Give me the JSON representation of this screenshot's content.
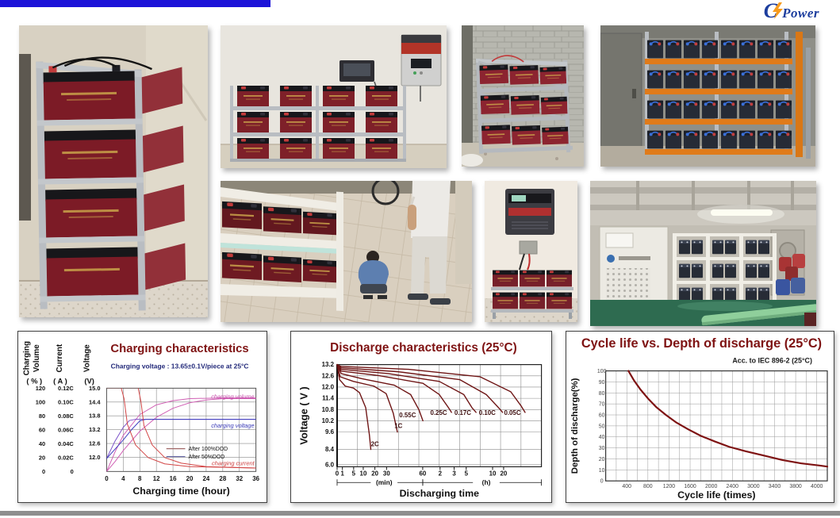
{
  "page": {
    "top_bar_color": "#1c13d8",
    "bottom_bar_color": "#8e8e8e",
    "background": "#ffffff"
  },
  "logo": {
    "c": "C",
    "power": "Power",
    "blue": "#1d3e9e",
    "orange": "#f79b1d",
    "bolt_icon": "lightning-bolt"
  },
  "photos": [
    {
      "id": "battery-tower-installation",
      "desc": "tall steel rack tower of red CSPower batteries against a wall"
    },
    {
      "id": "inverter-and-battery-shelf",
      "desc": "wall-mounted inverter above a 3-tier shelf of red batteries"
    },
    {
      "id": "battery-rack-concrete-room",
      "desc": "3-row battery rack in a concrete block room"
    },
    {
      "id": "orange-rack-battery-bank",
      "desc": "orange pallet racking filled with black batteries, blue and red terminals"
    },
    {
      "id": "battery-shelf-installation-team",
      "desc": "two installers beside white shelving loaded with batteries"
    },
    {
      "id": "wall-inverter-small-battery-rack",
      "desc": "wall inverter wired to a small two-tier battery rack"
    },
    {
      "id": "ups-battery-room",
      "desc": "UPS cabinet and white battery racks in an industrial room with green floor"
    }
  ],
  "chart_data": [
    {
      "kind": "charging",
      "type": "line",
      "title": "Charging characteristics",
      "subtitle": "Charging voltage :   13.65±0.1V/piece at 25°C",
      "xlabel": "Charging time (hour)",
      "x_ticks": [
        "0",
        "4",
        "8",
        "12",
        "16",
        "20",
        "24",
        "28",
        "32",
        "36"
      ],
      "x_range": [
        0,
        36
      ],
      "y_axes": [
        {
          "words": [
            "Charging",
            "Volume"
          ],
          "unit": "( % )",
          "ticks": [
            "120",
            "100",
            "80",
            "60",
            "40",
            "20",
            "0"
          ],
          "range": [
            0,
            120
          ]
        },
        {
          "words": [
            "Current"
          ],
          "unit": "( A )",
          "ticks": [
            "0.12C",
            "0.10C",
            "0.08C",
            "0.06C",
            "0.04C",
            "0.02C",
            "0"
          ],
          "range": [
            0,
            0.12
          ]
        },
        {
          "words": [
            "Voltage"
          ],
          "unit": "(V)",
          "ticks": [
            "15.0",
            "14.4",
            "13.8",
            "13.2",
            "12.6",
            "12.0"
          ],
          "range": [
            12.0,
            15.0
          ]
        }
      ],
      "legend": [
        {
          "label": "After 100%DOD",
          "color": "#a06868"
        },
        {
          "label": "After 50%DOD",
          "color": "#6868a8"
        }
      ],
      "curve_labels": [
        {
          "text": "charging volume",
          "color": "#c448a8",
          "y_axis": "volume",
          "y": 108
        },
        {
          "text": "charging voltage",
          "color": "#3a3ab8",
          "y_axis": "voltage",
          "y": 13.38
        },
        {
          "text": "charging current",
          "color": "#cc3c3c",
          "y_axis": "current",
          "y": 0.012
        }
      ],
      "series": [
        {
          "name": "charging volume after 50%DOD",
          "axis": "volume",
          "color": "#d060b4",
          "points": [
            [
              0,
              0
            ],
            [
              2,
              28
            ],
            [
              4,
              52
            ],
            [
              8,
              82
            ],
            [
              12,
              96
            ],
            [
              16,
              102
            ],
            [
              20,
              105
            ],
            [
              28,
              106
            ],
            [
              36,
              106
            ]
          ]
        },
        {
          "name": "charging volume after 100%DOD",
          "axis": "volume",
          "color": "#d060b4",
          "points": [
            [
              0,
              0
            ],
            [
              2,
              14
            ],
            [
              4,
              30
            ],
            [
              8,
              58
            ],
            [
              12,
              78
            ],
            [
              16,
              91
            ],
            [
              20,
              99
            ],
            [
              24,
              103
            ],
            [
              28,
              105
            ],
            [
              36,
              105
            ]
          ]
        },
        {
          "name": "charging voltage after 50%DOD",
          "axis": "voltage",
          "color": "#7a50c8",
          "points": [
            [
              0,
              11.95
            ],
            [
              2,
              12.7
            ],
            [
              4,
              13.3
            ],
            [
              5.5,
              13.6
            ],
            [
              7,
              13.65
            ],
            [
              36,
              13.65
            ]
          ]
        },
        {
          "name": "charging voltage after 100%DOD",
          "axis": "voltage",
          "color": "#4040c0",
          "points": [
            [
              0,
              11.95
            ],
            [
              2,
              12.35
            ],
            [
              4,
              12.75
            ],
            [
              6,
              13.2
            ],
            [
              8,
              13.58
            ],
            [
              9.5,
              13.65
            ],
            [
              36,
              13.65
            ]
          ]
        },
        {
          "name": "charging current after 50%DOD",
          "axis": "current",
          "color": "#d24444",
          "points": [
            [
              0,
              0.1205
            ],
            [
              3.5,
              0.1205
            ],
            [
              4.2,
              0.105
            ],
            [
              5,
              0.068
            ],
            [
              7,
              0.038
            ],
            [
              10,
              0.02
            ],
            [
              14,
              0.011
            ],
            [
              20,
              0.007
            ],
            [
              36,
              0.005
            ]
          ]
        },
        {
          "name": "charging current after 100%DOD",
          "axis": "current",
          "color": "#d24444",
          "points": [
            [
              0,
              0.1205
            ],
            [
              7.6,
              0.1205
            ],
            [
              8.3,
              0.1
            ],
            [
              9,
              0.066
            ],
            [
              11,
              0.038
            ],
            [
              14,
              0.02
            ],
            [
              18,
              0.012
            ],
            [
              24,
              0.007
            ],
            [
              36,
              0.005
            ]
          ]
        }
      ]
    },
    {
      "kind": "discharge",
      "type": "line",
      "title": "Discharge characteristics (25°C)",
      "ylabel": "Voltage ( V )",
      "xlabel": "Discharging time",
      "curve_color": "#6e1414",
      "y_ticks": [
        [
          "13.2",
          1.0
        ],
        [
          "12.6",
          0.89
        ],
        [
          "12.0",
          0.78
        ],
        [
          "11.4",
          0.67
        ],
        [
          "10.8",
          0.56
        ],
        [
          "10.2",
          0.45
        ],
        [
          "9.6",
          0.34
        ],
        [
          "8.4",
          0.17
        ],
        [
          "6.0",
          0.02
        ]
      ],
      "x_ticks": [
        [
          "0",
          0
        ],
        [
          "1",
          0.026
        ],
        [
          "5",
          0.081
        ],
        [
          "10",
          0.128
        ],
        [
          "20",
          0.185
        ],
        [
          "30",
          0.242
        ],
        [
          "60",
          0.419
        ],
        [
          "2",
          0.504
        ],
        [
          "3",
          0.573
        ],
        [
          "5",
          0.632
        ],
        [
          "10",
          0.761
        ],
        [
          "20",
          0.815
        ]
      ],
      "unit_groups": [
        {
          "label": "(min)",
          "center": 0.23,
          "span": [
            0,
            0.419
          ]
        },
        {
          "label": "(h)",
          "center": 0.73,
          "span": [
            0.419,
            1.0
          ]
        }
      ],
      "curves": [
        {
          "name": "2C",
          "label_pos": [
            0.185,
            8.62
          ],
          "points": [
            [
              0,
              13.2
            ],
            [
              0.012,
              12.4
            ],
            [
              0.04,
              12.05
            ],
            [
              0.08,
              11.95
            ],
            [
              0.11,
              11.7
            ],
            [
              0.14,
              10.9
            ],
            [
              0.158,
              9.4
            ],
            [
              0.165,
              8.4
            ]
          ]
        },
        {
          "name": "1C",
          "label_pos": [
            0.3,
            9.82
          ],
          "points": [
            [
              0,
              13.2
            ],
            [
              0.015,
              12.55
            ],
            [
              0.08,
              12.3
            ],
            [
              0.18,
              12.05
            ],
            [
              0.24,
              11.65
            ],
            [
              0.275,
              10.6
            ],
            [
              0.295,
              9.6
            ]
          ]
        },
        {
          "name": "0.55C",
          "label_pos": [
            0.345,
            10.38
          ],
          "points": [
            [
              0,
              13.2
            ],
            [
              0.02,
              12.72
            ],
            [
              0.12,
              12.45
            ],
            [
              0.28,
              12.1
            ],
            [
              0.36,
              11.6
            ],
            [
              0.4,
              10.8
            ],
            [
              0.42,
              10.2
            ]
          ]
        },
        {
          "name": "0.25C",
          "label_pos": [
            0.497,
            10.52
          ],
          "points": [
            [
              0,
              13.2
            ],
            [
              0.02,
              12.85
            ],
            [
              0.2,
              12.62
            ],
            [
              0.42,
              12.2
            ],
            [
              0.5,
              11.6
            ],
            [
              0.545,
              10.9
            ],
            [
              0.56,
              10.65
            ]
          ]
        },
        {
          "name": "0.17C",
          "label_pos": [
            0.615,
            10.52
          ],
          "points": [
            [
              0,
              13.2
            ],
            [
              0.02,
              12.95
            ],
            [
              0.25,
              12.72
            ],
            [
              0.5,
              12.3
            ],
            [
              0.62,
              11.6
            ],
            [
              0.66,
              10.9
            ],
            [
              0.68,
              10.65
            ]
          ]
        },
        {
          "name": "0.10C",
          "label_pos": [
            0.735,
            10.52
          ],
          "points": [
            [
              0,
              13.2
            ],
            [
              0.02,
              13.03
            ],
            [
              0.3,
              12.82
            ],
            [
              0.6,
              12.4
            ],
            [
              0.73,
              11.6
            ],
            [
              0.79,
              10.9
            ],
            [
              0.81,
              10.65
            ]
          ]
        },
        {
          "name": "0.05C",
          "label_pos": [
            0.858,
            10.52
          ],
          "points": [
            [
              0,
              13.2
            ],
            [
              0.02,
              13.1
            ],
            [
              0.35,
              12.95
            ],
            [
              0.7,
              12.55
            ],
            [
              0.85,
              11.75
            ],
            [
              0.9,
              11.0
            ],
            [
              0.92,
              10.65
            ]
          ]
        }
      ]
    },
    {
      "kind": "cycle",
      "type": "line",
      "title": "Cycle life vs. Depth of discharge (25°C)",
      "subtitle": "Acc. to IEC 896-2 (25°C)",
      "ylabel": "Depth of discharge(%)",
      "xlabel": "Cycle life (times)",
      "y_ticks": [
        "100",
        "90",
        "80",
        "70",
        "60",
        "50",
        "40",
        "30",
        "20",
        "10",
        "0"
      ],
      "y_range": [
        0,
        100
      ],
      "x_tick_labels": [
        "400",
        "800",
        "1200",
        "1600",
        "2000",
        "2400",
        "3000",
        "3400",
        "3800",
        "4000"
      ],
      "x_range": [
        0,
        4200
      ],
      "grid_step_x": 200,
      "curve_color": "#7e1212",
      "points": [
        [
          430,
          100
        ],
        [
          540,
          91
        ],
        [
          660,
          83
        ],
        [
          800,
          75
        ],
        [
          960,
          67
        ],
        [
          1140,
          60
        ],
        [
          1340,
          53
        ],
        [
          1560,
          47
        ],
        [
          1800,
          41
        ],
        [
          2060,
          36
        ],
        [
          2340,
          31
        ],
        [
          2650,
          27
        ],
        [
          3000,
          23
        ],
        [
          3350,
          19
        ],
        [
          3700,
          16
        ],
        [
          4050,
          14
        ],
        [
          4200,
          13
        ]
      ]
    }
  ]
}
